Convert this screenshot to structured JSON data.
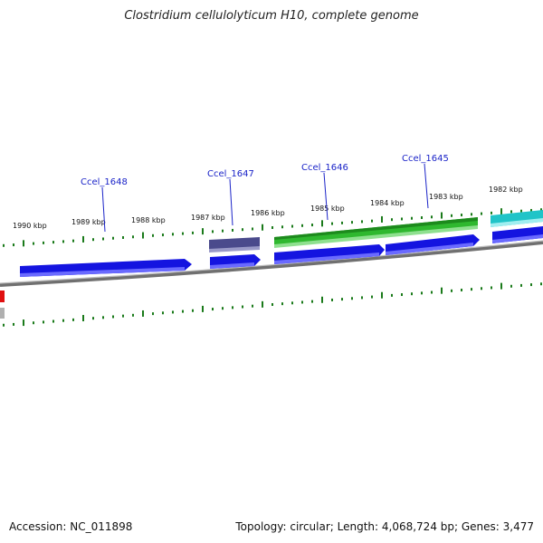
{
  "title": "Clostridium cellulolyticum H10, complete genome",
  "footer": {
    "accession": "Accession: NC_011898",
    "summary": "Topology: circular; Length: 4,068,724 bp; Genes: 3,477"
  },
  "colors": {
    "backbone": "#808080",
    "tick": "#1a7a1a",
    "label": "#1a23c8",
    "blue_cds": "#1414e0",
    "green_cds": "#2fb82f",
    "slate_cds": "#4a4a8c",
    "cyan_cds": "#20c4c8",
    "red_feature": "#e01010"
  },
  "ticks": [
    {
      "label": "1990 kbp"
    },
    {
      "label": "1989 kbp"
    },
    {
      "label": "1988 kbp"
    },
    {
      "label": "1987 kbp"
    },
    {
      "label": "1986 kbp"
    },
    {
      "label": "1985 kbp"
    },
    {
      "label": "1984 kbp"
    },
    {
      "label": "1983 kbp"
    },
    {
      "label": "1982 kbp"
    }
  ],
  "gene_labels": [
    {
      "label": "Ccel_1648"
    },
    {
      "label": "Ccel_1647"
    },
    {
      "label": "Ccel_1646"
    },
    {
      "label": "Ccel_1645"
    }
  ]
}
